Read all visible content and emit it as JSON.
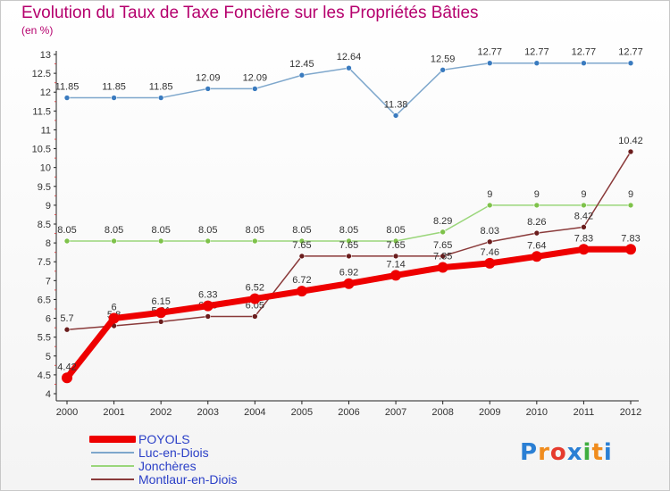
{
  "title": "Evolution du Taux de Taxe Foncière sur les Propriétés Bâties",
  "unit": "(en %)",
  "logo": {
    "text": "Proxiti",
    "colors": [
      "#2a7fd4",
      "#f08c1e",
      "#e63b2e",
      "#2a7fd4",
      "#3fae3f",
      "#f08c1e",
      "#2a7fd4"
    ]
  },
  "chart_data": {
    "type": "line",
    "title": "Evolution du Taux de Taxe Foncière sur les Propriétés Bâties",
    "ylabel": "(en %)",
    "xlabel": "",
    "x": [
      2000,
      2001,
      2002,
      2003,
      2004,
      2005,
      2006,
      2007,
      2008,
      2009,
      2010,
      2011,
      2012
    ],
    "ylim": [
      4,
      13
    ],
    "yticks": [
      "4",
      "4.5",
      "5",
      "5.5",
      "6",
      "6.5",
      "7",
      "7.5",
      "8",
      "8.5",
      "9",
      "9.5",
      "10",
      "10.5",
      "11",
      "11.5",
      "12",
      "12.5",
      "13"
    ],
    "grid": false,
    "legend": "bottom-left",
    "series": [
      {
        "name": "POYOLS",
        "color": "#ee0000",
        "width": 7,
        "values": [
          4.42,
          6,
          6.15,
          6.33,
          6.52,
          6.72,
          6.92,
          7.14,
          7.35,
          7.46,
          7.64,
          7.83,
          7.83
        ],
        "labels": [
          "4.42",
          "6",
          "6.15",
          "6.33",
          "6.52",
          "6.72",
          "6.92",
          "7.14",
          "7.35",
          "7.46",
          "7.64",
          "7.83",
          "7.83"
        ]
      },
      {
        "name": "Luc-en-Diois",
        "color": "#7ea7cc",
        "point": "#3a7bbf",
        "width": 1.5,
        "values": [
          11.85,
          11.85,
          11.85,
          12.09,
          12.09,
          12.45,
          12.64,
          11.38,
          12.59,
          12.77,
          12.77,
          12.77,
          12.77
        ],
        "labels": [
          "11.85",
          "11.85",
          "11.85",
          "12.09",
          "12.09",
          "12.45",
          "12.64",
          "11.38",
          "12.59",
          "12.77",
          "12.77",
          "12.77",
          "12.77"
        ]
      },
      {
        "name": "Jonchères",
        "color": "#9ad67a",
        "point": "#7ec24a",
        "width": 1.5,
        "values": [
          8.05,
          8.05,
          8.05,
          8.05,
          8.05,
          8.05,
          8.05,
          8.05,
          8.29,
          9,
          9,
          9,
          9
        ],
        "labels": [
          "8.05",
          "8.05",
          "8.05",
          "8.05",
          "8.05",
          "8.05",
          "8.05",
          "8.05",
          "8.29",
          "9",
          "9",
          "9",
          "9"
        ]
      },
      {
        "name": "Montlaur-en-Diois",
        "color": "#8a3a3a",
        "point": "#6a1c1c",
        "width": 1.5,
        "values": [
          5.7,
          5.8,
          5.91,
          6.05,
          6.05,
          7.65,
          7.65,
          7.65,
          7.65,
          8.03,
          8.26,
          8.42,
          10.42
        ],
        "labels": [
          "5.7",
          "5.8",
          "5.91",
          "6.05",
          "6.05",
          "7.65",
          "7.65",
          "7.65",
          "7.65",
          "8.03",
          "8.26",
          "8.42",
          "10.42"
        ]
      }
    ]
  }
}
